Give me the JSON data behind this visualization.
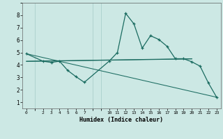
{
  "xlabel": "Humidex (Indice chaleur)",
  "bg_color": "#cce8e4",
  "grid_color": "#aacfcb",
  "line_color": "#1a6b60",
  "xlim": [
    -0.5,
    23.5
  ],
  "ylim": [
    0.5,
    9.0
  ],
  "xticks": [
    0,
    2,
    3,
    4,
    5,
    6,
    7,
    10,
    11,
    12,
    13,
    14,
    15,
    16,
    17,
    18,
    19,
    20,
    21,
    22,
    23
  ],
  "yticks": [
    1,
    2,
    3,
    4,
    5,
    6,
    7,
    8
  ],
  "main_line": {
    "x": [
      0,
      2,
      3,
      4,
      5,
      6,
      7,
      10,
      11,
      12,
      13,
      14,
      15,
      16,
      17,
      18,
      19,
      20,
      21,
      22,
      23
    ],
    "y": [
      4.9,
      4.3,
      4.2,
      4.3,
      3.55,
      3.05,
      2.6,
      4.3,
      5.0,
      8.15,
      7.3,
      5.35,
      6.35,
      6.05,
      5.5,
      4.5,
      4.5,
      4.25,
      3.9,
      2.55,
      1.4
    ]
  },
  "trend_lines": [
    {
      "x": [
        0,
        23
      ],
      "y": [
        4.9,
        1.4
      ]
    },
    {
      "x": [
        0,
        20
      ],
      "y": [
        4.3,
        4.5
      ]
    },
    {
      "x": [
        0,
        20
      ],
      "y": [
        4.28,
        4.48
      ]
    }
  ]
}
